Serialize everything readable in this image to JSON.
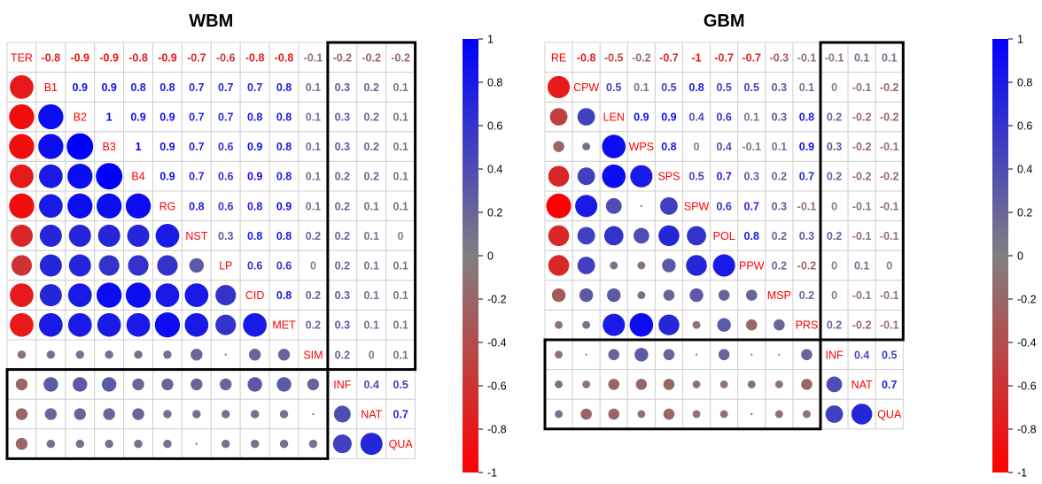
{
  "chart_data": [
    {
      "type": "heatmap",
      "subtype": "correlation-matrix",
      "title": "WBM",
      "variables": [
        "TER",
        "B1",
        "B2",
        "B3",
        "B4",
        "RG",
        "NST",
        "LP",
        "CID",
        "MET",
        "SIM",
        "INF",
        "NAT",
        "QUA"
      ],
      "upper_triangle": [
        [
          -0.8,
          -0.9,
          -0.9,
          -0.8,
          -0.9,
          -0.7,
          -0.6,
          -0.8,
          -0.8,
          -0.1,
          -0.2,
          -0.2,
          -0.2
        ],
        [
          0.9,
          0.9,
          0.8,
          0.8,
          0.7,
          0.7,
          0.7,
          0.8,
          0.1,
          0.3,
          0.2,
          0.1
        ],
        [
          1,
          0.9,
          0.9,
          0.7,
          0.7,
          0.8,
          0.8,
          0.1,
          0.3,
          0.2,
          0.1
        ],
        [
          1,
          0.9,
          0.7,
          0.6,
          0.9,
          0.8,
          0.1,
          0.3,
          0.2,
          0.1
        ],
        [
          0.9,
          0.7,
          0.6,
          0.9,
          0.8,
          0.1,
          0.2,
          0.2,
          0.1
        ],
        [
          0.8,
          0.6,
          0.8,
          0.9,
          0.1,
          0.2,
          0.1,
          0.1
        ],
        [
          0.3,
          0.8,
          0.8,
          0.2,
          0.2,
          0.1,
          0
        ],
        [
          0.6,
          0.6,
          0,
          0.2,
          0.1,
          0.1
        ],
        [
          0.8,
          0.2,
          0.3,
          0.1,
          0.1
        ],
        [
          0.2,
          0.3,
          0.1,
          0.1
        ],
        [
          0.2,
          0,
          0.1
        ],
        [
          0.4,
          0.5
        ],
        [
          0.7
        ]
      ],
      "colorbar": {
        "min": -1,
        "max": 1,
        "ticks": [
          "1",
          "0.8",
          "0.6",
          "0.4",
          "0.2",
          "0",
          "-0.2",
          "-0.4",
          "-0.6",
          "-0.8",
          "-1"
        ]
      },
      "highlight_boxes": [
        {
          "rows": [
            0,
            10
          ],
          "cols": [
            11,
            13
          ]
        },
        {
          "rows": [
            11,
            13
          ],
          "cols": [
            0,
            10
          ]
        }
      ]
    },
    {
      "type": "heatmap",
      "subtype": "correlation-matrix",
      "title": "GBM",
      "variables": [
        "RE",
        "CPW",
        "LEN",
        "WPS",
        "SPS",
        "SPW",
        "POL",
        "PPW",
        "MSP",
        "PRS",
        "INF",
        "NAT",
        "QUA"
      ],
      "upper_triangle": [
        [
          -0.8,
          -0.5,
          -0.2,
          -0.7,
          -1,
          -0.7,
          -0.7,
          -0.3,
          -0.1,
          -0.1,
          0.1,
          0.1
        ],
        [
          0.5,
          0.1,
          0.5,
          0.8,
          0.5,
          0.5,
          0.3,
          0.1,
          0,
          -0.1,
          -0.2
        ],
        [
          0.9,
          0.9,
          0.4,
          0.6,
          0.1,
          0.3,
          0.8,
          0.2,
          -0.2,
          -0.2
        ],
        [
          0.8,
          0,
          0.4,
          -0.1,
          0.1,
          0.9,
          0.3,
          -0.2,
          -0.1
        ],
        [
          0.5,
          0.7,
          0.3,
          0.2,
          0.7,
          0.2,
          -0.2,
          -0.2
        ],
        [
          0.6,
          0.7,
          0.3,
          -0.1,
          0,
          -0.1,
          -0.1
        ],
        [
          0.8,
          0.2,
          0.3,
          0.2,
          -0.1,
          -0.1
        ],
        [
          0.2,
          -0.2,
          0,
          0.1,
          0
        ],
        [
          0.2,
          0,
          -0.1,
          -0.1
        ],
        [
          0.2,
          -0.2,
          -0.1
        ],
        [
          0.4,
          0.5
        ],
        [
          0.7
        ]
      ],
      "colorbar": {
        "min": -1,
        "max": 1,
        "ticks": [
          "1",
          "0.8",
          "0.6",
          "0.4",
          "0.2",
          "0",
          "-0.2",
          "-0.4",
          "-0.6",
          "-0.8",
          "-1"
        ]
      },
      "highlight_boxes": [
        {
          "rows": [
            0,
            9
          ],
          "cols": [
            10,
            12
          ]
        },
        {
          "rows": [
            10,
            12
          ],
          "cols": [
            0,
            9
          ]
        }
      ]
    }
  ],
  "colors": {
    "positive": "#0000ff",
    "negative": "#ff0000",
    "neutral": "#808080",
    "diagonal_text": "#ff0000",
    "grid": "#d0d0d0",
    "box": "#000000"
  }
}
